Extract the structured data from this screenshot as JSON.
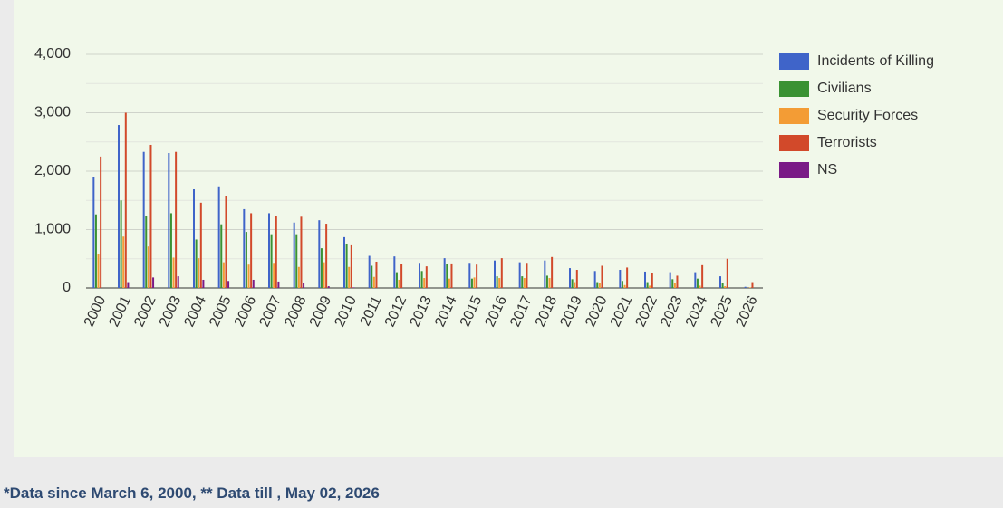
{
  "chart_data": {
    "type": "bar",
    "categories": [
      "2000",
      "2001",
      "2002",
      "2003",
      "2004",
      "2005",
      "2006",
      "2007",
      "2008",
      "2009",
      "2010",
      "2011",
      "2012",
      "2013",
      "2014",
      "2015",
      "2016",
      "2017",
      "2018",
      "2019",
      "2020",
      "2021",
      "2022",
      "2023",
      "2024",
      "2025",
      "2026"
    ],
    "series": [
      {
        "name": "Incidents of Killing",
        "color": "#3f64c9",
        "values": [
          1900,
          2790,
          2330,
          2310,
          1690,
          1740,
          1350,
          1280,
          1120,
          1160,
          870,
          550,
          540,
          430,
          510,
          430,
          470,
          440,
          470,
          340,
          290,
          310,
          280,
          270,
          270,
          200,
          20
        ]
      },
      {
        "name": "Civilians",
        "color": "#3a9233",
        "values": [
          1260,
          1500,
          1240,
          1280,
          830,
          1090,
          960,
          920,
          920,
          680,
          760,
          380,
          270,
          290,
          410,
          160,
          200,
          200,
          210,
          150,
          100,
          120,
          100,
          150,
          160,
          90,
          0
        ]
      },
      {
        "name": "Security Forces",
        "color": "#f39c35",
        "values": [
          580,
          880,
          710,
          520,
          510,
          440,
          400,
          430,
          360,
          440,
          360,
          190,
          140,
          170,
          160,
          180,
          170,
          170,
          170,
          100,
          80,
          50,
          40,
          80,
          40,
          30,
          10
        ]
      },
      {
        "name": "Terrorists",
        "color": "#d2492a",
        "values": [
          2250,
          3000,
          2450,
          2330,
          1460,
          1580,
          1280,
          1230,
          1220,
          1100,
          730,
          450,
          410,
          370,
          420,
          400,
          510,
          430,
          530,
          310,
          380,
          350,
          250,
          210,
          390,
          500,
          100
        ]
      },
      {
        "name": "NS",
        "color": "#7a1a86",
        "values": [
          0,
          100,
          180,
          200,
          140,
          120,
          140,
          110,
          90,
          30,
          10,
          0,
          0,
          0,
          0,
          0,
          0,
          0,
          0,
          0,
          0,
          0,
          0,
          0,
          0,
          0,
          0
        ]
      }
    ],
    "ylim": [
      0,
      4000
    ],
    "yticks": [
      0,
      {
        "value": 1000,
        "label": "1,000"
      },
      {
        "value": 2000,
        "label": "2,000"
      },
      {
        "value": 3000,
        "label": "3,000"
      },
      {
        "value": 4000,
        "label": "4,000"
      }
    ],
    "grid": true,
    "legend": "right"
  },
  "footnote": "*Data since March 6, 2000, ** Data till , May 02, 2026"
}
